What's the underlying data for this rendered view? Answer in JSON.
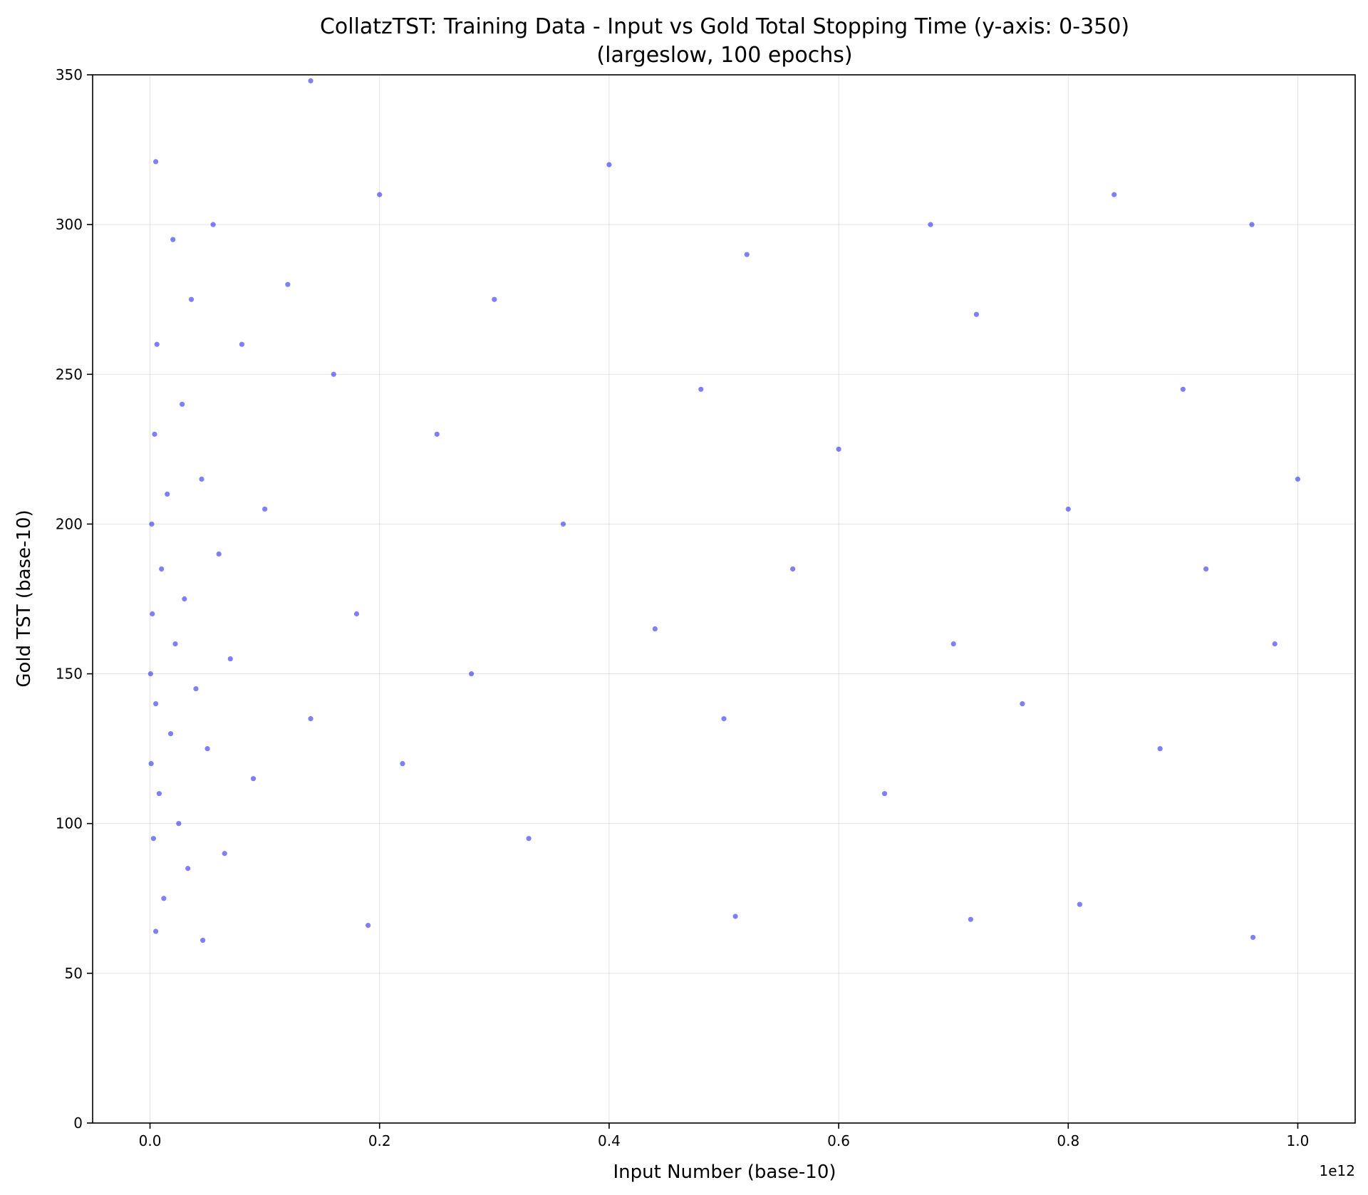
{
  "chart_data": {
    "type": "scatter",
    "title": "CollatzTST: Training Data - Input vs Gold Total Stopping Time (y-axis: 0-350)",
    "subtitle": "(largeslow, 100 epochs)",
    "xlabel": "Input Number (base-10)",
    "ylabel": "Gold TST (base-10)",
    "x_offset_label": "1e12",
    "x_scale": 1000000000000,
    "xlim": [
      -0.05,
      1.05
    ],
    "ylim": [
      0,
      350
    ],
    "x_ticks": [
      0.0,
      0.2,
      0.4,
      0.6,
      0.8,
      1.0
    ],
    "x_tick_labels": [
      "0.0",
      "0.2",
      "0.4",
      "0.6",
      "0.8",
      "1.0"
    ],
    "y_ticks": [
      0,
      50,
      100,
      150,
      200,
      250,
      300,
      350
    ],
    "y_tick_labels": [
      "0",
      "50",
      "100",
      "150",
      "200",
      "250",
      "300",
      "350"
    ],
    "grid": true,
    "marker_color": "#0000ee",
    "marker_alpha": 0.5,
    "series": [
      {
        "values_note_free": true,
        "x": [
          0.0005,
          0.001,
          0.0015,
          0.002,
          0.003,
          0.004,
          0.005,
          0.006,
          0.008,
          0.01,
          0.012,
          0.015,
          0.018,
          0.02,
          0.022,
          0.025,
          0.028,
          0.03,
          0.033,
          0.036,
          0.04,
          0.045,
          0.05,
          0.055,
          0.06,
          0.065,
          0.07,
          0.08,
          0.09,
          0.1,
          0.12,
          0.14,
          0.16,
          0.18,
          0.2,
          0.22,
          0.25,
          0.28,
          0.3,
          0.33,
          0.36,
          0.4,
          0.44,
          0.48,
          0.5,
          0.52,
          0.56,
          0.6,
          0.64,
          0.68,
          0.7,
          0.72,
          0.76,
          0.8,
          0.84,
          0.88,
          0.9,
          0.92,
          0.96,
          0.98,
          1.0,
          0.005,
          0.046,
          0.19,
          0.51,
          0.715,
          0.81,
          0.961,
          0.005,
          0.14
        ],
        "y": [
          150,
          120,
          200,
          170,
          95,
          230,
          140,
          260,
          110,
          185,
          75,
          210,
          130,
          295,
          160,
          100,
          240,
          175,
          85,
          275,
          145,
          215,
          125,
          300,
          190,
          90,
          155,
          260,
          115,
          205,
          280,
          135,
          250,
          170,
          310,
          120,
          230,
          150,
          275,
          95,
          200,
          320,
          165,
          245,
          135,
          290,
          185,
          225,
          110,
          300,
          160,
          270,
          140,
          205,
          310,
          125,
          245,
          185,
          300,
          160,
          215,
          64,
          61,
          66,
          69,
          68,
          73,
          62,
          321,
          348
        ]
      }
    ]
  }
}
